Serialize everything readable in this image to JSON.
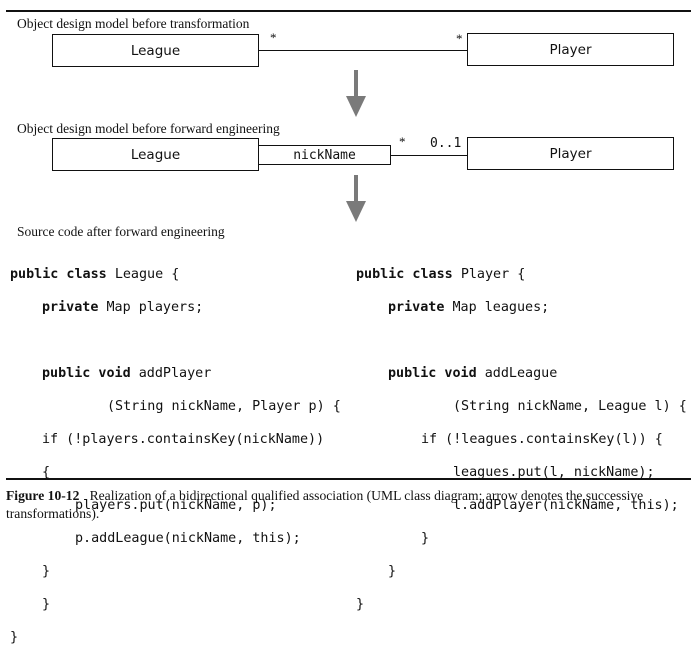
{
  "diagram1": {
    "label": "Object design model before transformation",
    "left_class": "League",
    "right_class": "Player",
    "left_multiplicity": "*",
    "right_multiplicity": "*"
  },
  "diagram2": {
    "label": "Object design model before forward engineering",
    "left_class": "League",
    "qualifier": "nickName",
    "right_class": "Player",
    "left_multiplicity": "*",
    "right_multiplicity": "0..1"
  },
  "code_section_label": "Source code after forward engineering",
  "code_left": {
    "l1_kw": "public class ",
    "l1_rest": "League {",
    "l2_kw": "private ",
    "l2_rest": "Map players;",
    "l3_kw": "public void ",
    "l3_rest": "addPlayer",
    "l4": "(String nickName, Player p) {",
    "l5": "if (!players.containsKey(nickName))",
    "l6": "{",
    "l7": "players.put(nickName, p);",
    "l8": "p.addLeague(nickName, this);",
    "l9": "}",
    "l10": "}",
    "l11": "}"
  },
  "code_right": {
    "l1_kw": "public class ",
    "l1_rest": "Player {",
    "l2_kw": "private ",
    "l2_rest": "Map leagues;",
    "l3_kw": "public void ",
    "l3_rest": "addLeague",
    "l4": "(String nickName, League l) {",
    "l5": "if (!leagues.containsKey(l)) {",
    "l6": "leagues.put(l, nickName);",
    "l7": "l.addPlayer(nickName, this);",
    "l8": "}",
    "l9": "}",
    "l10": "}"
  },
  "caption": {
    "figure_number": "Figure 10-12",
    "text": "Realization of a bidirectional qualified association (UML class diagram; arrow denotes the successive transformations)."
  },
  "colors": {
    "arrow": "#7a7a7a",
    "ink": "#111111"
  }
}
